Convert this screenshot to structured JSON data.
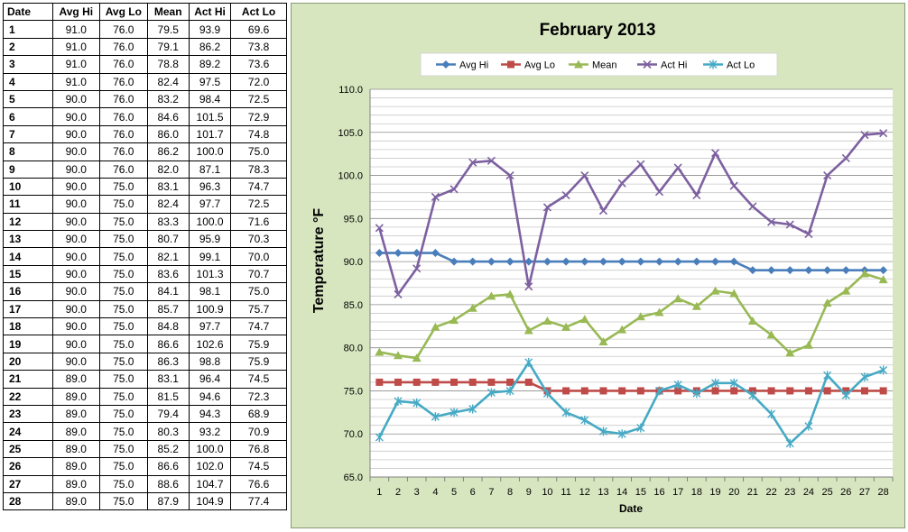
{
  "table": {
    "headers": [
      "Date",
      "Avg Hi",
      "Avg Lo",
      "Mean",
      "Act Hi",
      "Act Lo"
    ],
    "rows": [
      [
        "1",
        "91.0",
        "76.0",
        "79.5",
        "93.9",
        "69.6"
      ],
      [
        "2",
        "91.0",
        "76.0",
        "79.1",
        "86.2",
        "73.8"
      ],
      [
        "3",
        "91.0",
        "76.0",
        "78.8",
        "89.2",
        "73.6"
      ],
      [
        "4",
        "91.0",
        "76.0",
        "82.4",
        "97.5",
        "72.0"
      ],
      [
        "5",
        "90.0",
        "76.0",
        "83.2",
        "98.4",
        "72.5"
      ],
      [
        "6",
        "90.0",
        "76.0",
        "84.6",
        "101.5",
        "72.9"
      ],
      [
        "7",
        "90.0",
        "76.0",
        "86.0",
        "101.7",
        "74.8"
      ],
      [
        "8",
        "90.0",
        "76.0",
        "86.2",
        "100.0",
        "75.0"
      ],
      [
        "9",
        "90.0",
        "76.0",
        "82.0",
        "87.1",
        "78.3"
      ],
      [
        "10",
        "90.0",
        "75.0",
        "83.1",
        "96.3",
        "74.7"
      ],
      [
        "11",
        "90.0",
        "75.0",
        "82.4",
        "97.7",
        "72.5"
      ],
      [
        "12",
        "90.0",
        "75.0",
        "83.3",
        "100.0",
        "71.6"
      ],
      [
        "13",
        "90.0",
        "75.0",
        "80.7",
        "95.9",
        "70.3"
      ],
      [
        "14",
        "90.0",
        "75.0",
        "82.1",
        "99.1",
        "70.0"
      ],
      [
        "15",
        "90.0",
        "75.0",
        "83.6",
        "101.3",
        "70.7"
      ],
      [
        "16",
        "90.0",
        "75.0",
        "84.1",
        "98.1",
        "75.0"
      ],
      [
        "17",
        "90.0",
        "75.0",
        "85.7",
        "100.9",
        "75.7"
      ],
      [
        "18",
        "90.0",
        "75.0",
        "84.8",
        "97.7",
        "74.7"
      ],
      [
        "19",
        "90.0",
        "75.0",
        "86.6",
        "102.6",
        "75.9"
      ],
      [
        "20",
        "90.0",
        "75.0",
        "86.3",
        "98.8",
        "75.9"
      ],
      [
        "21",
        "89.0",
        "75.0",
        "83.1",
        "96.4",
        "74.5"
      ],
      [
        "22",
        "89.0",
        "75.0",
        "81.5",
        "94.6",
        "72.3"
      ],
      [
        "23",
        "89.0",
        "75.0",
        "79.4",
        "94.3",
        "68.9"
      ],
      [
        "24",
        "89.0",
        "75.0",
        "80.3",
        "93.2",
        "70.9"
      ],
      [
        "25",
        "89.0",
        "75.0",
        "85.2",
        "100.0",
        "76.8"
      ],
      [
        "26",
        "89.0",
        "75.0",
        "86.6",
        "102.0",
        "74.5"
      ],
      [
        "27",
        "89.0",
        "75.0",
        "88.6",
        "104.7",
        "76.6"
      ],
      [
        "28",
        "89.0",
        "75.0",
        "87.9",
        "104.9",
        "77.4"
      ]
    ]
  },
  "chart_data": {
    "type": "line",
    "title": "February 2013",
    "xlabel": "Date",
    "ylabel": "Temperature °F",
    "ylim": [
      65,
      110
    ],
    "y_ticks": [
      "65.0",
      "70.0",
      "75.0",
      "80.0",
      "85.0",
      "90.0",
      "95.0",
      "100.0",
      "105.0",
      "110.0"
    ],
    "y_tick_values": [
      65,
      70,
      75,
      80,
      85,
      90,
      95,
      100,
      105,
      110
    ],
    "x": [
      1,
      2,
      3,
      4,
      5,
      6,
      7,
      8,
      9,
      10,
      11,
      12,
      13,
      14,
      15,
      16,
      17,
      18,
      19,
      20,
      21,
      22,
      23,
      24,
      25,
      26,
      27,
      28
    ],
    "grid": true,
    "legend_position": "top",
    "series": [
      {
        "name": "Avg Hi",
        "color": "#4a7ebb",
        "marker": "diamond",
        "values": [
          91,
          91,
          91,
          91,
          90,
          90,
          90,
          90,
          90,
          90,
          90,
          90,
          90,
          90,
          90,
          90,
          90,
          90,
          90,
          90,
          89,
          89,
          89,
          89,
          89,
          89,
          89,
          89
        ]
      },
      {
        "name": "Avg Lo",
        "color": "#be4b48",
        "marker": "square",
        "values": [
          76,
          76,
          76,
          76,
          76,
          76,
          76,
          76,
          76,
          75,
          75,
          75,
          75,
          75,
          75,
          75,
          75,
          75,
          75,
          75,
          75,
          75,
          75,
          75,
          75,
          75,
          75,
          75
        ]
      },
      {
        "name": "Mean",
        "color": "#98b954",
        "marker": "triangle",
        "values": [
          79.5,
          79.1,
          78.8,
          82.4,
          83.2,
          84.6,
          86.0,
          86.2,
          82.0,
          83.1,
          82.4,
          83.3,
          80.7,
          82.1,
          83.6,
          84.1,
          85.7,
          84.8,
          86.6,
          86.3,
          83.1,
          81.5,
          79.4,
          80.3,
          85.2,
          86.6,
          88.6,
          87.9
        ]
      },
      {
        "name": "Act Hi",
        "color": "#7d60a0",
        "marker": "x",
        "values": [
          93.9,
          86.2,
          89.2,
          97.5,
          98.4,
          101.5,
          101.7,
          100.0,
          87.1,
          96.3,
          97.7,
          100.0,
          95.9,
          99.1,
          101.3,
          98.1,
          100.9,
          97.7,
          102.6,
          98.8,
          96.4,
          94.6,
          94.3,
          93.2,
          100.0,
          102.0,
          104.7,
          104.9
        ]
      },
      {
        "name": "Act Lo",
        "color": "#46aac5",
        "marker": "star",
        "values": [
          69.6,
          73.8,
          73.6,
          72.0,
          72.5,
          72.9,
          74.8,
          75.0,
          78.3,
          74.7,
          72.5,
          71.6,
          70.3,
          70.0,
          70.7,
          75.0,
          75.7,
          74.7,
          75.9,
          75.9,
          74.5,
          72.3,
          68.9,
          70.9,
          76.8,
          74.5,
          76.6,
          77.4
        ]
      }
    ]
  }
}
